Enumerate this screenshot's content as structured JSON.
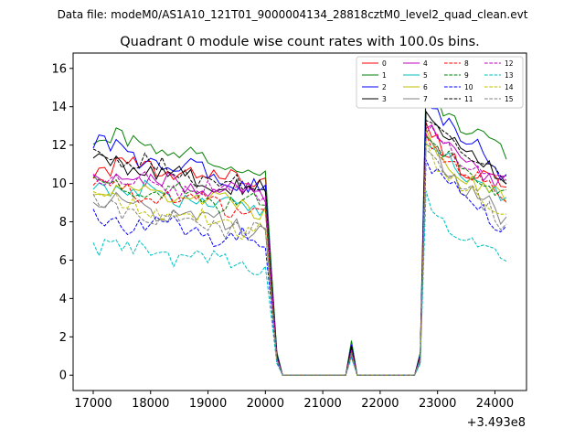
{
  "chart_data": {
    "type": "line",
    "suptitle": "Data file: modeM0/AS1A10_121T01_9000004134_28818cztM0_level2_quad_clean.evt",
    "title": "Quadrant 0 module wise count rates with 100.0s bins.",
    "xlabel": "",
    "ylabel": "",
    "x_offset_label": "+3.493e8",
    "xlim": [
      16650,
      24550
    ],
    "ylim": [
      -0.8,
      16.8
    ],
    "x_ticks": [
      17000,
      18000,
      19000,
      20000,
      21000,
      22000,
      23000,
      24000
    ],
    "y_ticks": [
      0,
      2,
      4,
      6,
      8,
      10,
      12,
      14,
      16
    ],
    "x_start": 17000,
    "x_step": 100,
    "gap_x": [
      20300,
      21400,
      21600,
      22600
    ],
    "legend_position": "top-right",
    "series": [
      {
        "name": "0",
        "color": "#ff0000",
        "dash": "solid",
        "pre": [
          10.9,
          10.2
        ],
        "post": [
          12.7,
          9.6
        ],
        "spike": 1.3,
        "mid_tail": 1.1
      },
      {
        "name": "1",
        "color": "#008000",
        "dash": "solid",
        "pre": [
          12.5,
          10.5
        ],
        "post": [
          15.0,
          11.6
        ],
        "spike": 1.8,
        "mid_tail": 1.2
      },
      {
        "name": "2",
        "color": "#0000ff",
        "dash": "solid",
        "pre": [
          12.0,
          9.7
        ],
        "post": [
          14.9,
          10.4
        ],
        "spike": 1.6,
        "mid_tail": 1.1
      },
      {
        "name": "3",
        "color": "#000000",
        "dash": "solid",
        "pre": [
          11.3,
          9.5
        ],
        "post": [
          14.0,
          10.2
        ],
        "spike": 1.5,
        "mid_tail": 1.0
      },
      {
        "name": "4",
        "color": "#bf00bf",
        "dash": "solid",
        "pre": [
          10.5,
          9.3
        ],
        "post": [
          13.3,
          9.9
        ],
        "spike": 1.3,
        "mid_tail": 0.9
      },
      {
        "name": "5",
        "color": "#00bfbf",
        "dash": "solid",
        "pre": [
          9.9,
          8.5
        ],
        "post": [
          12.5,
          9.0
        ],
        "spike": 1.2,
        "mid_tail": 0.8
      },
      {
        "name": "6",
        "color": "#bfbf00",
        "dash": "solid",
        "pre": [
          9.7,
          8.7
        ],
        "post": [
          12.3,
          9.1
        ],
        "spike": 1.2,
        "mid_tail": 0.8
      },
      {
        "name": "7",
        "color": "#808080",
        "dash": "solid",
        "pre": [
          9.2,
          7.6
        ],
        "post": [
          12.1,
          8.0
        ],
        "spike": 1.1,
        "mid_tail": 0.8
      },
      {
        "name": "8",
        "color": "#ff0000",
        "dash": "dashed",
        "pre": [
          9.8,
          8.5
        ],
        "post": [
          12.4,
          9.3
        ],
        "spike": 1.2,
        "mid_tail": 0.9
      },
      {
        "name": "9",
        "color": "#008000",
        "dash": "dashed",
        "pre": [
          10.0,
          8.8
        ],
        "post": [
          12.6,
          9.4
        ],
        "spike": 1.3,
        "mid_tail": 0.9
      },
      {
        "name": "10",
        "color": "#0000ff",
        "dash": "dashed",
        "pre": [
          8.3,
          6.9
        ],
        "post": [
          11.6,
          7.7
        ],
        "spike": 1.0,
        "mid_tail": 0.7
      },
      {
        "name": "11",
        "color": "#000000",
        "dash": "dashed",
        "pre": [
          11.6,
          9.4
        ],
        "post": [
          13.7,
          10.1
        ],
        "spike": 1.4,
        "mid_tail": 1.0
      },
      {
        "name": "12",
        "color": "#bf00bf",
        "dash": "dashed",
        "pre": [
          10.4,
          9.3
        ],
        "post": [
          13.0,
          9.7
        ],
        "spike": 1.3,
        "mid_tail": 0.9
      },
      {
        "name": "13",
        "color": "#00bfbf",
        "dash": "dashed",
        "pre": [
          6.8,
          5.7
        ],
        "post": [
          9.1,
          6.0
        ],
        "spike": 0.9,
        "mid_tail": 0.6
      },
      {
        "name": "14",
        "color": "#bfbf00",
        "dash": "dashed",
        "pre": [
          9.2,
          7.5
        ],
        "post": [
          11.9,
          8.1
        ],
        "spike": 1.1,
        "mid_tail": 0.8
      },
      {
        "name": "15",
        "color": "#808080",
        "dash": "dashed",
        "pre": [
          8.8,
          7.5
        ],
        "post": [
          11.8,
          8.0
        ],
        "spike": 1.1,
        "mid_tail": 0.8
      }
    ]
  }
}
